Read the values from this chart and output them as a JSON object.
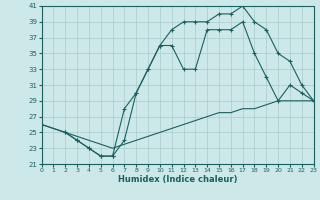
{
  "xlabel": "Humidex (Indice chaleur)",
  "background_color": "#cde8e8",
  "grid_color": "#aacccc",
  "line_color": "#1a6060",
  "xlim": [
    0,
    23
  ],
  "ylim": [
    21,
    41
  ],
  "xticks": [
    0,
    1,
    2,
    3,
    4,
    5,
    6,
    7,
    8,
    9,
    10,
    11,
    12,
    13,
    14,
    15,
    16,
    17,
    18,
    19,
    20,
    21,
    22,
    23
  ],
  "yticks": [
    21,
    23,
    25,
    27,
    29,
    31,
    33,
    35,
    37,
    39,
    41
  ],
  "line_flat_x": [
    0,
    1,
    2,
    3,
    4,
    5,
    6,
    7,
    8,
    9,
    10,
    11,
    12,
    13,
    14,
    15,
    16,
    17,
    18,
    19,
    20,
    21,
    22,
    23
  ],
  "line_flat_y": [
    26,
    25.5,
    25,
    24.5,
    24,
    23.5,
    23,
    23.5,
    24,
    24.5,
    25,
    25.5,
    26,
    26.5,
    27,
    27.5,
    27.5,
    28,
    28,
    28.5,
    29,
    29,
    29,
    29
  ],
  "line_mid_x": [
    0,
    2,
    3,
    4,
    5,
    6,
    7,
    8,
    9,
    10,
    11,
    12,
    13,
    14,
    15,
    16,
    17,
    18,
    19,
    20,
    21,
    22,
    23
  ],
  "line_mid_y": [
    26,
    25,
    24,
    23,
    22,
    22,
    28,
    30,
    33,
    36,
    38,
    39,
    39,
    39,
    40,
    40,
    41,
    39,
    38,
    35,
    34,
    31,
    29
  ],
  "line_bot_x": [
    2,
    3,
    4,
    5,
    6,
    7,
    8,
    9,
    10,
    11,
    12,
    13,
    14,
    15,
    16,
    17,
    18,
    19,
    20,
    21,
    22,
    23
  ],
  "line_bot_y": [
    25,
    24,
    23,
    22,
    22,
    24,
    30,
    33,
    36,
    36,
    33,
    33,
    38,
    38,
    38,
    39,
    35,
    32,
    29,
    31,
    30,
    29
  ]
}
